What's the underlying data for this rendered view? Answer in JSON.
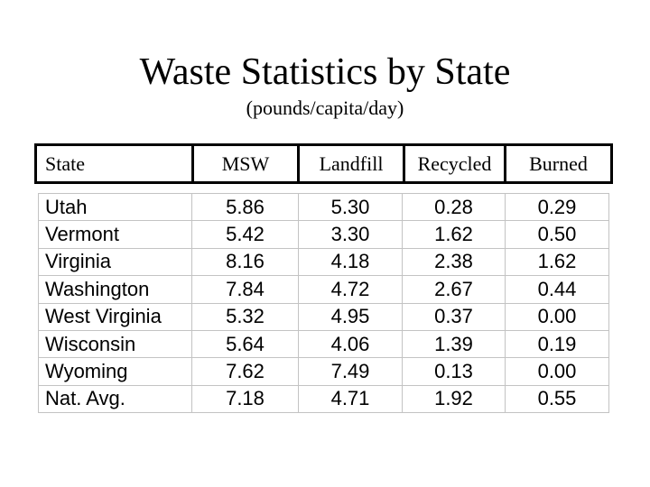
{
  "slide": {
    "title": "Waste Statistics by State",
    "subtitle": "(pounds/capita/day)"
  },
  "colors": {
    "background": "#ffffff",
    "text": "#000000",
    "header_border": "#000000",
    "grid_line": "#c3c3c3"
  },
  "chart_data": {
    "type": "table",
    "title": "Waste Statistics by State",
    "subtitle": "(pounds/capita/day)",
    "columns": [
      "State",
      "MSW",
      "Landfill",
      "Recycled",
      "Burned"
    ],
    "rows": [
      [
        "Utah",
        "5.86",
        "5.30",
        "0.28",
        "0.29"
      ],
      [
        "Vermont",
        "5.42",
        "3.30",
        "1.62",
        "0.50"
      ],
      [
        "Virginia",
        "8.16",
        "4.18",
        "2.38",
        "1.62"
      ],
      [
        "Washington",
        "7.84",
        "4.72",
        "2.67",
        "0.44"
      ],
      [
        "West Virginia",
        "5.32",
        "4.95",
        "0.37",
        "0.00"
      ],
      [
        "Wisconsin",
        "5.64",
        "4.06",
        "1.39",
        "0.19"
      ],
      [
        "Wyoming",
        "7.62",
        "7.49",
        "0.13",
        "0.00"
      ],
      [
        "Nat. Avg.",
        "7.18",
        "4.71",
        "1.92",
        "0.55"
      ]
    ]
  }
}
